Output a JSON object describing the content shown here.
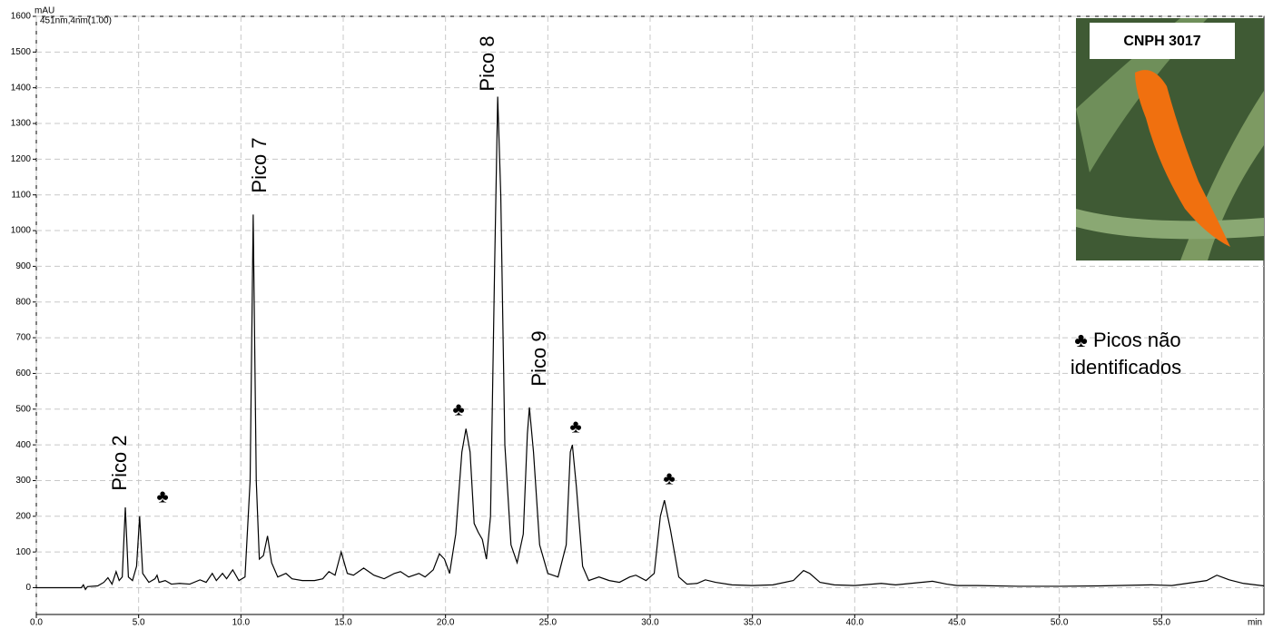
{
  "chart_data": {
    "type": "line",
    "y_unit": "mAU",
    "detector": "451nm,4nm(1.00)",
    "x_unit": "min",
    "x": [
      0,
      2.2,
      2.3,
      2.4,
      2.5,
      3,
      3.3,
      3.5,
      3.7,
      3.9,
      4.05,
      4.2,
      4.35,
      4.5,
      4.7,
      4.9,
      5.05,
      5.2,
      5.5,
      5.8,
      5.9,
      6.0,
      6.3,
      6.6,
      7.0,
      7.5,
      8.0,
      8.3,
      8.6,
      8.8,
      9.1,
      9.3,
      9.6,
      9.9,
      10.2,
      10.45,
      10.6,
      10.75,
      10.9,
      11.1,
      11.3,
      11.5,
      11.8,
      12.2,
      12.5,
      13,
      13.6,
      14.0,
      14.3,
      14.6,
      14.9,
      15.2,
      15.5,
      16.0,
      16.5,
      17.0,
      17.5,
      17.8,
      18.2,
      18.7,
      19.0,
      19.4,
      19.7,
      19.95,
      20.2,
      20.5,
      20.8,
      21.0,
      21.2,
      21.4,
      21.6,
      21.8,
      22.0,
      22.2,
      22.4,
      22.55,
      22.7,
      22.9,
      23.2,
      23.5,
      23.8,
      24.0,
      24.1,
      24.3,
      24.6,
      25.0,
      25.5,
      25.9,
      26.1,
      26.2,
      26.4,
      26.7,
      27.0,
      27.5,
      28.0,
      28.5,
      29.0,
      29.3,
      29.8,
      30.2,
      30.5,
      30.7,
      31.0,
      31.4,
      31.8,
      32.3,
      32.7,
      33.2,
      34,
      35,
      36,
      37,
      37.5,
      37.8,
      38.3,
      39,
      40,
      41.3,
      42,
      43.8,
      44.5,
      45,
      46,
      48,
      50,
      52,
      54.5,
      55.5,
      57.2,
      57.7,
      58.3,
      59,
      60
    ],
    "values": [
      0,
      0,
      8,
      -5,
      3,
      5,
      15,
      28,
      10,
      45,
      20,
      30,
      225,
      30,
      20,
      60,
      200,
      40,
      15,
      25,
      35,
      15,
      20,
      10,
      12,
      10,
      22,
      15,
      40,
      20,
      40,
      25,
      50,
      20,
      30,
      300,
      1045,
      300,
      80,
      90,
      145,
      70,
      30,
      40,
      25,
      20,
      20,
      25,
      45,
      35,
      100,
      40,
      35,
      55,
      35,
      25,
      40,
      45,
      30,
      40,
      30,
      50,
      95,
      80,
      40,
      150,
      380,
      445,
      380,
      180,
      155,
      135,
      80,
      200,
      900,
      1375,
      1100,
      400,
      120,
      70,
      150,
      430,
      505,
      380,
      120,
      40,
      30,
      120,
      380,
      400,
      280,
      60,
      20,
      30,
      20,
      15,
      30,
      35,
      20,
      40,
      200,
      245,
      160,
      30,
      10,
      12,
      22,
      15,
      8,
      6,
      8,
      20,
      48,
      40,
      15,
      8,
      6,
      12,
      8,
      18,
      10,
      6,
      6,
      4,
      4,
      5,
      8,
      6,
      20,
      35,
      22,
      12,
      5
    ],
    "color": "#000000",
    "xlim": [
      0,
      60
    ],
    "ylim": [
      -75,
      1600
    ],
    "xticks": [
      {
        "value": 0,
        "label": "0.0"
      },
      {
        "value": 5,
        "label": "5.0"
      },
      {
        "value": 10,
        "label": "10.0"
      },
      {
        "value": 15,
        "label": "15.0"
      },
      {
        "value": 20,
        "label": "20.0"
      },
      {
        "value": 25,
        "label": "25.0"
      },
      {
        "value": 30,
        "label": "30.0"
      },
      {
        "value": 35,
        "label": "35.0"
      },
      {
        "value": 40,
        "label": "40.0"
      },
      {
        "value": 45,
        "label": "45.0"
      },
      {
        "value": 50,
        "label": "50.0"
      },
      {
        "value": 55,
        "label": "55.0"
      }
    ],
    "yticks": [
      0,
      100,
      200,
      300,
      400,
      500,
      600,
      700,
      800,
      900,
      1000,
      1100,
      1200,
      1300,
      1400,
      1500,
      1600
    ],
    "grid": true,
    "annotations": [
      "Pico 2",
      "Pico 7",
      "Pico 8",
      "Pico 9",
      "♣",
      "♣",
      "♣",
      "♣"
    ],
    "legend_lines": [
      "♣ Picos não",
      "identificados"
    ],
    "inset_label": "CNPH 3017"
  }
}
